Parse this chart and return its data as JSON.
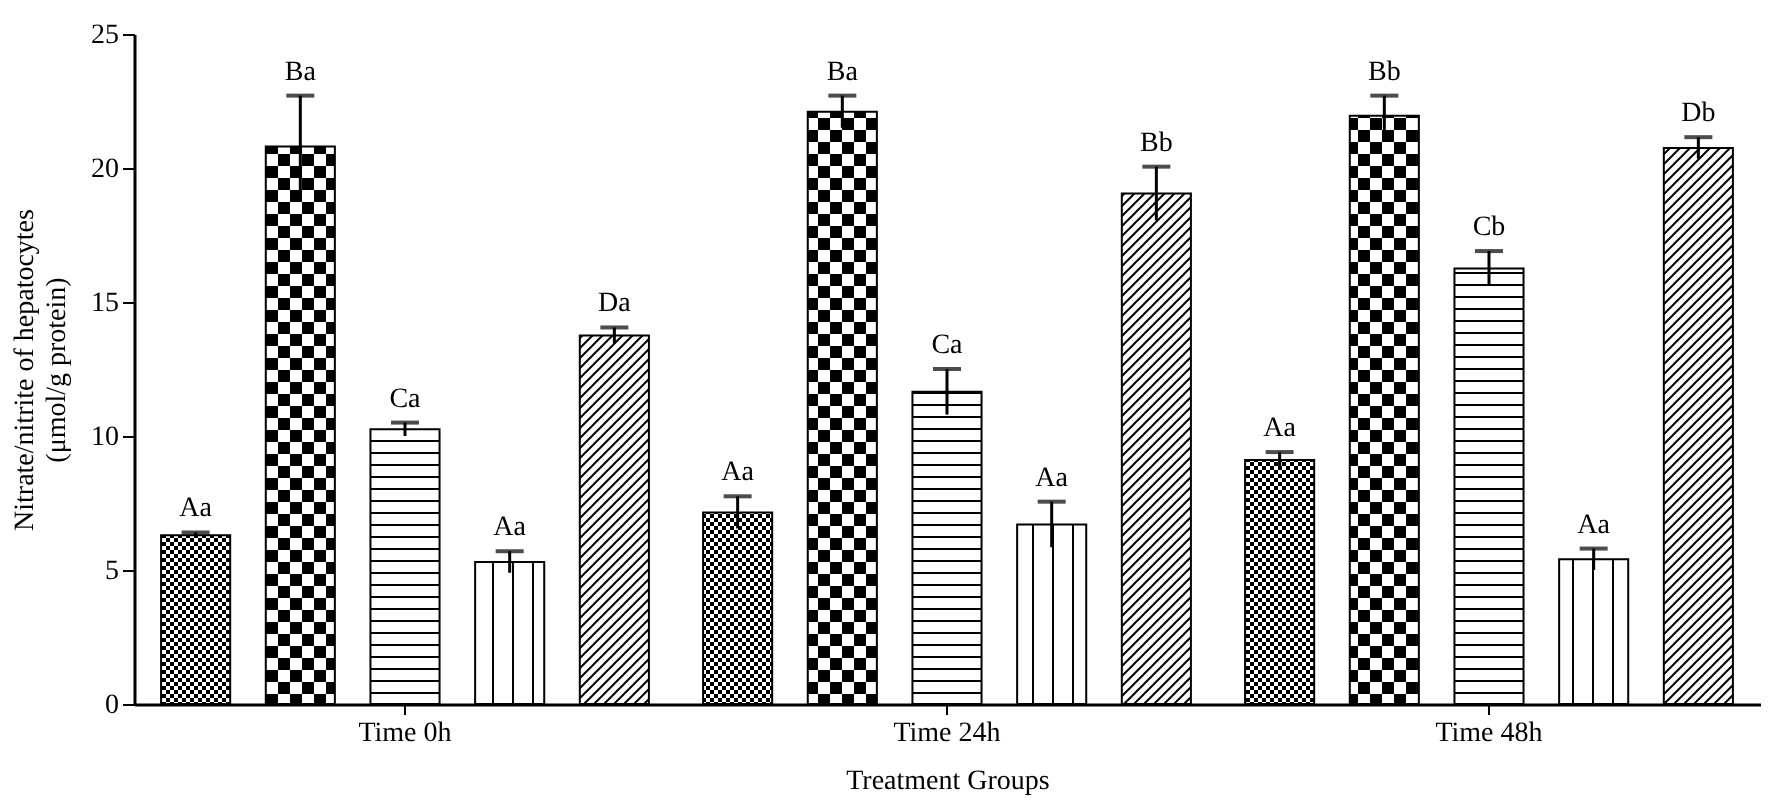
{
  "chart_data": {
    "type": "bar",
    "xlabel": "Treatment Groups",
    "ylabel": "Nitrate/nitrite of hepatocytes\n(μmol/g protein)",
    "categories": [
      "Time 0h",
      "Time 24h",
      "Time 48h"
    ],
    "series": [
      {
        "color": "#000000",
        "values": [
          6.3,
          7.15,
          9.1
        ],
        "errors": [
          0.1,
          0.6,
          0.3
        ],
        "value_labels": [
          "Aa",
          "Aa",
          "Aa"
        ]
      },
      {
        "color": "#000000",
        "values": [
          20.8,
          22.1,
          21.95
        ],
        "errors": [
          1.9,
          0.6,
          0.75
        ],
        "value_labels": [
          "Ba",
          "Ba",
          "Bb"
        ]
      },
      {
        "color": "#000000",
        "values": [
          10.25,
          11.65,
          16.25
        ],
        "errors": [
          0.25,
          0.85,
          0.65
        ],
        "value_labels": [
          "Ca",
          "Ca",
          "Cb"
        ]
      },
      {
        "color": "#000000",
        "values": [
          5.3,
          6.7,
          5.4
        ],
        "errors": [
          0.4,
          0.85,
          0.4
        ],
        "value_labels": [
          "Aa",
          "Aa",
          "Aa"
        ]
      },
      {
        "color": "#000000",
        "values": [
          13.75,
          19.05,
          20.75
        ],
        "errors": [
          0.3,
          1.0,
          0.4
        ],
        "value_labels": [
          "Da",
          "Bb",
          "Db"
        ]
      }
    ],
    "ylim": [
      0,
      25
    ],
    "yticks": [
      0,
      5,
      10,
      15,
      20,
      25
    ],
    "grid": false,
    "legend": false
  }
}
